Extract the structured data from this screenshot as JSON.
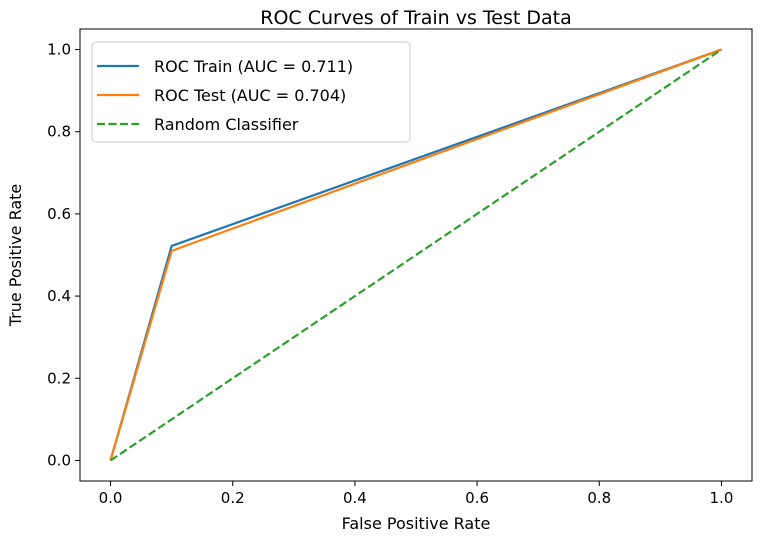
{
  "chart_data": {
    "type": "line",
    "title": "ROC Curves of Train vs Test Data",
    "xlabel": "False Positive Rate",
    "ylabel": "True Positive Rate",
    "xlim": [
      -0.05,
      1.05
    ],
    "ylim": [
      -0.05,
      1.05
    ],
    "xticks": [
      "0.0",
      "0.2",
      "0.4",
      "0.6",
      "0.8",
      "1.0"
    ],
    "yticks": [
      "0.0",
      "0.2",
      "0.4",
      "0.6",
      "0.8",
      "1.0"
    ],
    "grid": false,
    "legend_position": "top-left",
    "series": [
      {
        "name": "ROC Train (AUC = 0.711)",
        "color": "#1f77b4",
        "style": "solid",
        "x": [
          0.0,
          0.1,
          1.0
        ],
        "y": [
          0.0,
          0.522,
          1.0
        ]
      },
      {
        "name": "ROC Test (AUC = 0.704)",
        "color": "#ff7f0e",
        "style": "solid",
        "x": [
          0.0,
          0.1,
          1.0
        ],
        "y": [
          0.0,
          0.51,
          1.0
        ]
      },
      {
        "name": "Random Classifier",
        "color": "#2ca02c",
        "style": "dashed",
        "x": [
          0.0,
          1.0
        ],
        "y": [
          0.0,
          1.0
        ]
      }
    ]
  }
}
